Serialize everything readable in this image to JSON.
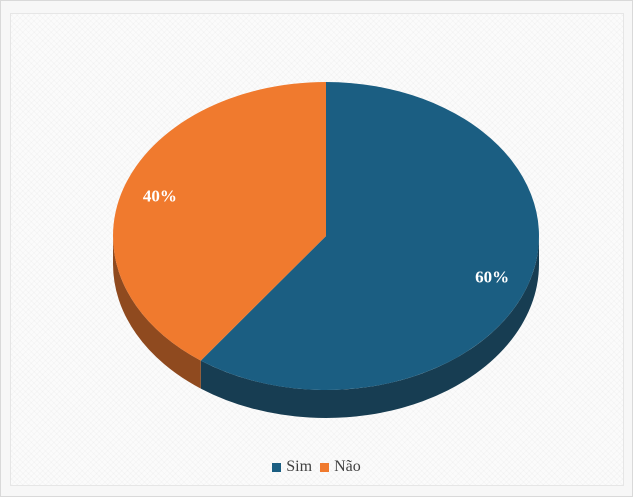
{
  "chart_data": {
    "type": "pie",
    "style": "3d",
    "categories": [
      "Sim",
      "Não"
    ],
    "values": [
      60,
      40
    ],
    "labels": [
      "60%",
      "40%"
    ],
    "colors": [
      "#1b5e82",
      "#f07a2e"
    ],
    "side_colors": [
      "#173d52",
      "#8f4a1f"
    ],
    "legend_position": "bottom"
  }
}
